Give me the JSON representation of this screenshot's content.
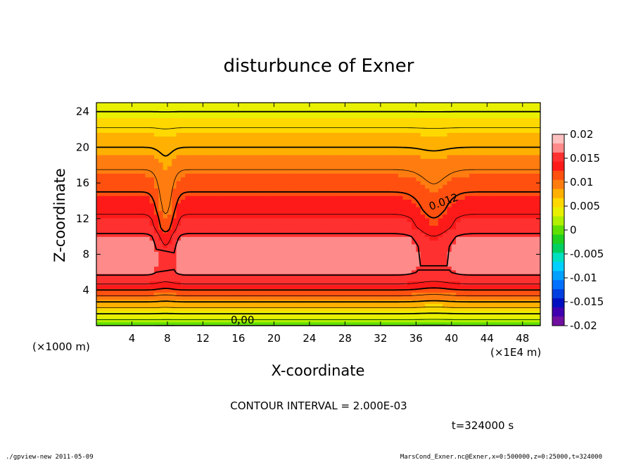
{
  "chart_data": {
    "type": "heatmap",
    "title": "disturbunce of Exner",
    "xlabel": "X-coordinate",
    "ylabel": "Z-coordinate",
    "x_unit": "(x1000 m)",
    "y_unit_note": "(×1E4 m)",
    "x_unit_left": "(×1000 m)",
    "x_ticks": [
      4,
      8,
      12,
      16,
      20,
      24,
      28,
      32,
      36,
      40,
      44,
      48
    ],
    "y_ticks": [
      4,
      8,
      12,
      16,
      20,
      24
    ],
    "xlim": [
      0,
      50
    ],
    "ylim": [
      0,
      25
    ],
    "colorbar": {
      "ticks": [
        "0.02",
        "0.015",
        "0.01",
        "0.005",
        "0",
        "-0.005",
        "-0.01",
        "-0.015",
        "-0.02"
      ],
      "range": [
        -0.02,
        0.02
      ],
      "colors": [
        "#ffc0c0",
        "#ff8a8a",
        "#ff3030",
        "#ff1a1a",
        "#ff5010",
        "#ff7d10",
        "#ffb000",
        "#ffd800",
        "#e8f000",
        "#b0f000",
        "#60e000",
        "#20d020",
        "#00d060",
        "#00e0c0",
        "#00d0ff",
        "#00a0ff",
        "#0070ff",
        "#0040e0",
        "#0010c0",
        "#4000b0",
        "#7010a0"
      ]
    },
    "profile": {
      "z": [
        0,
        1,
        2,
        3,
        4,
        5,
        6,
        7,
        8,
        9,
        10,
        11,
        12,
        13,
        14,
        15,
        16,
        17,
        18,
        19,
        20,
        21,
        22,
        23,
        24,
        25
      ],
      "value": [
        0.0,
        0.003,
        0.006,
        0.009,
        0.012,
        0.015,
        0.0165,
        0.017,
        0.0172,
        0.017,
        0.0165,
        0.015,
        0.0145,
        0.0135,
        0.0128,
        0.012,
        0.0112,
        0.0104,
        0.0096,
        0.0088,
        0.008,
        0.0072,
        0.0062,
        0.0052,
        0.004,
        0.003
      ]
    },
    "contour_interval": "CONTOUR INTERVAL = 2.000E-03",
    "contour_labels": [
      "0.012",
      "0.00"
    ],
    "time_label": "t=324000 s"
  },
  "footer": {
    "left": "./gpview-new   2011-05-09",
    "right": "MarsCond_Exner.nc@Exner,x=0:500000,z=0:25000,t=324000"
  }
}
